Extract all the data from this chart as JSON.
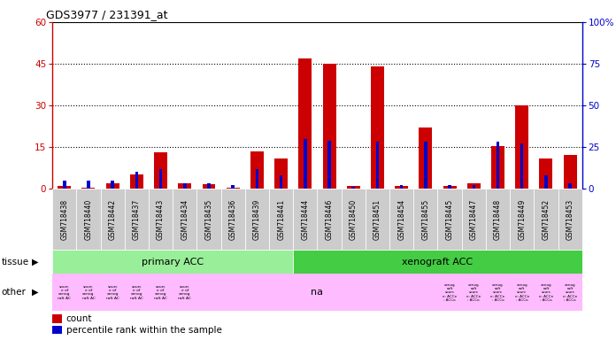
{
  "title": "GDS3977 / 231391_at",
  "samples": [
    "GSM718438",
    "GSM718440",
    "GSM718442",
    "GSM718437",
    "GSM718443",
    "GSM718434",
    "GSM718435",
    "GSM718436",
    "GSM718439",
    "GSM718441",
    "GSM718444",
    "GSM718446",
    "GSM718450",
    "GSM718451",
    "GSM718454",
    "GSM718455",
    "GSM718445",
    "GSM718447",
    "GSM718448",
    "GSM718449",
    "GSM718452",
    "GSM718453"
  ],
  "count": [
    1.0,
    0.5,
    2.0,
    5.0,
    13.0,
    2.0,
    1.5,
    0.5,
    13.5,
    11.0,
    47.0,
    45.0,
    1.0,
    44.0,
    1.0,
    22.0,
    1.0,
    2.0,
    15.5,
    30.0,
    11.0,
    12.0
  ],
  "percentile": [
    5,
    5,
    5,
    10,
    12,
    3,
    3,
    2,
    12,
    8,
    30,
    29,
    1,
    28,
    2,
    28,
    2,
    2,
    28,
    27,
    8,
    3
  ],
  "ylim_left": [
    0,
    60
  ],
  "ylim_right": [
    0,
    100
  ],
  "yticks_left": [
    0,
    15,
    30,
    45,
    60
  ],
  "yticks_right": [
    0,
    25,
    50,
    75,
    100
  ],
  "bar_color_count": "#cc0000",
  "bar_color_pct": "#0000cc",
  "tissue_primary": "primary ACC",
  "tissue_xenograft": "xenograft ACC",
  "tissue_primary_color": "#99ee99",
  "tissue_xenograft_color": "#44cc44",
  "other_color": "#ffbbff",
  "n_primary": 10,
  "n_xenograft": 12,
  "legend_count_label": "count",
  "legend_pct_label": "percentile rank within the sample",
  "left_axis_color": "#cc0000",
  "right_axis_color": "#0000cc",
  "plot_bg": "#ffffff",
  "label_bg": "#cccccc",
  "fig_bg": "#ffffff",
  "grid_dotted_vals": [
    15,
    30,
    45
  ]
}
